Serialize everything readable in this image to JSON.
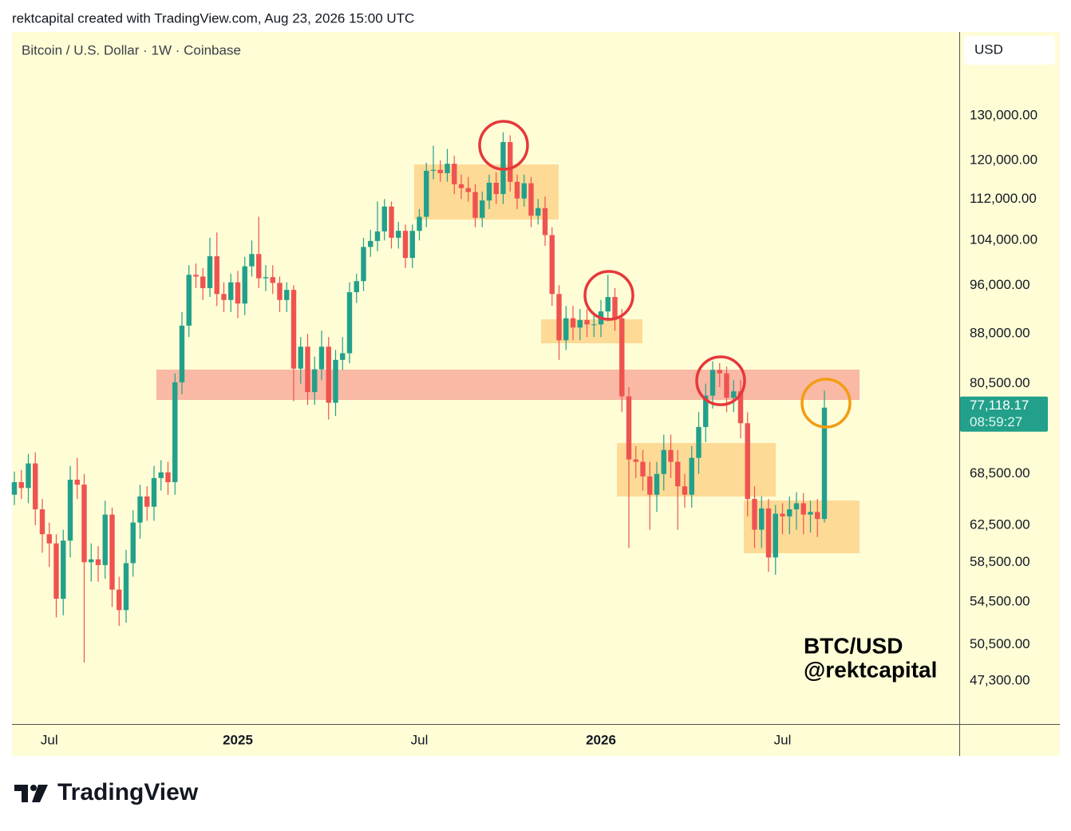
{
  "chart_data": {
    "type": "candlestick",
    "header": "rektcapital created with TradingView.com, Aug 23, 2026 15:00 UTC",
    "title": "Bitcoin / U.S. Dollar · 1W · Coinbase",
    "currency": "USD",
    "annotation": [
      "BTC/USD",
      "@rektcapital"
    ],
    "brand": "TradingView",
    "last_price_label": "77,118.17",
    "countdown": "08:59:27",
    "log_scale": true,
    "grid": false,
    "up_color": "#22a08b",
    "down_color": "#ef5350",
    "categories": [
      null,
      null,
      null,
      null,
      null,
      "Jul",
      null,
      null,
      null,
      null,
      null,
      null,
      null,
      null,
      null,
      null,
      null,
      null,
      null,
      null,
      null,
      null,
      null,
      null,
      null,
      null,
      null,
      null,
      null,
      null,
      null,
      null,
      "2025",
      null,
      null,
      null,
      null,
      null,
      null,
      null,
      null,
      null,
      null,
      null,
      null,
      null,
      null,
      null,
      null,
      null,
      null,
      null,
      null,
      null,
      null,
      null,
      null,
      null,
      "Jul",
      null,
      null,
      null,
      null,
      null,
      null,
      null,
      null,
      null,
      null,
      null,
      null,
      null,
      null,
      null,
      null,
      null,
      null,
      null,
      null,
      null,
      null,
      null,
      null,
      null,
      "2026",
      null,
      null,
      null,
      null,
      null,
      null,
      null,
      null,
      null,
      null,
      null,
      null,
      null,
      null,
      null,
      null,
      null,
      null,
      null,
      null,
      null,
      null,
      null,
      null,
      null,
      "Jul",
      null,
      null,
      null,
      null,
      null,
      null
    ],
    "open": [
      66000,
      67500,
      66800,
      69800,
      64300,
      61500,
      60500,
      54800,
      60800,
      67800,
      67200,
      58500,
      58800,
      58200,
      63700,
      55700,
      53700,
      58400,
      62800,
      65800,
      64600,
      68000,
      68700,
      67500,
      80700,
      89300,
      97800,
      97500,
      95500,
      101100,
      94500,
      93500,
      96500,
      92900,
      99300,
      101500,
      97200,
      97400,
      96400,
      93500,
      95200,
      82700,
      86000,
      79300,
      82600,
      86000,
      77800,
      84000,
      85000,
      94800,
      96700,
      102800,
      103900,
      105700,
      110500,
      104500,
      105800,
      100800,
      105800,
      108500,
      117800,
      118000,
      117300,
      119300,
      115000,
      114200,
      113400,
      108300,
      111700,
      115300,
      113000,
      124000,
      115500,
      112100,
      115200,
      108700,
      110200,
      105000,
      94500,
      87000,
      90500,
      89000,
      90200,
      89500,
      89500,
      91600,
      94000,
      90500,
      78700,
      70300,
      70000,
      68200,
      66000,
      68500,
      71500,
      70000,
      67000,
      66000,
      70500,
      74500,
      78800,
      82500,
      82000,
      78500,
      79400,
      75000,
      65500,
      62000,
      64400,
      59000,
      63800,
      63500,
      64300,
      65000,
      63700,
      64000,
      63200
    ],
    "high": [
      68800,
      69000,
      71000,
      71200,
      65500,
      62800,
      61500,
      62000,
      69500,
      70500,
      68500,
      60500,
      60200,
      65300,
      64500,
      57000,
      59800,
      64200,
      67200,
      67000,
      69500,
      70200,
      70000,
      82000,
      91500,
      99500,
      99800,
      99000,
      104500,
      105500,
      96500,
      98000,
      98500,
      101000,
      104000,
      108500,
      99500,
      99500,
      97500,
      96500,
      96000,
      87500,
      88000,
      84500,
      88500,
      87500,
      85500,
      87500,
      96500,
      98000,
      104500,
      106000,
      111500,
      112000,
      111500,
      107500,
      107000,
      107000,
      110000,
      119500,
      123200,
      120000,
      122500,
      121000,
      117000,
      116500,
      115000,
      113500,
      117000,
      117500,
      126200,
      125500,
      117000,
      117000,
      116500,
      112000,
      112500,
      106500,
      96000,
      92500,
      92500,
      92000,
      92000,
      91000,
      93500,
      97800,
      95500,
      92000,
      80000,
      72000,
      71500,
      70000,
      70000,
      73500,
      73500,
      71500,
      68500,
      72000,
      76500,
      80500,
      83800,
      83500,
      83000,
      81000,
      81000,
      76500,
      67000,
      65800,
      65500,
      64800,
      65000,
      65800,
      66300,
      66200,
      65300,
      65500,
      79500
    ],
    "low": [
      64800,
      65500,
      65000,
      62500,
      59500,
      58000,
      53000,
      53200,
      59000,
      65500,
      48900,
      56500,
      56500,
      56800,
      54000,
      52200,
      52500,
      57000,
      61000,
      63000,
      63000,
      66500,
      66000,
      66000,
      79000,
      87500,
      95500,
      93500,
      94000,
      92500,
      91500,
      91500,
      90500,
      91000,
      97500,
      95500,
      95000,
      94500,
      91500,
      91500,
      78000,
      80500,
      77500,
      77500,
      81000,
      75500,
      76000,
      82500,
      83500,
      93000,
      95000,
      101000,
      102000,
      104000,
      102500,
      102500,
      99000,
      99000,
      104000,
      106500,
      116000,
      115500,
      115500,
      113000,
      112000,
      111500,
      106500,
      106500,
      110000,
      111000,
      111000,
      113500,
      110000,
      110500,
      106500,
      107000,
      103000,
      92500,
      84000,
      85500,
      87000,
      87000,
      87500,
      87500,
      87500,
      90000,
      88500,
      76500,
      60000,
      68000,
      66500,
      62000,
      64000,
      66500,
      68000,
      62000,
      64500,
      64500,
      68500,
      72500,
      77000,
      80000,
      76500,
      76500,
      73000,
      63500,
      60000,
      60000,
      57500,
      57200,
      61500,
      61500,
      62000,
      61500,
      61700,
      61200,
      62800
    ],
    "close": [
      67500,
      66800,
      69800,
      64300,
      61500,
      60500,
      54800,
      60800,
      67800,
      67200,
      58500,
      58800,
      58200,
      63700,
      55700,
      53700,
      58400,
      62800,
      65800,
      64600,
      68000,
      68700,
      67500,
      80700,
      89300,
      97800,
      97500,
      95500,
      101100,
      94500,
      93500,
      96500,
      92900,
      99300,
      101500,
      97200,
      97400,
      96400,
      93500,
      95200,
      82700,
      86000,
      79300,
      82600,
      86000,
      77800,
      84000,
      85000,
      94800,
      96700,
      102800,
      103900,
      105700,
      110500,
      104500,
      105800,
      100800,
      105800,
      108500,
      117800,
      118000,
      117300,
      119300,
      115000,
      114200,
      113400,
      108300,
      111700,
      115300,
      113000,
      124000,
      115500,
      112100,
      115200,
      108700,
      110200,
      105000,
      94500,
      87000,
      90500,
      89000,
      90200,
      89500,
      89500,
      91600,
      94000,
      90500,
      78700,
      70300,
      70000,
      68200,
      66000,
      68500,
      71500,
      70000,
      67000,
      66000,
      70500,
      74500,
      78800,
      82500,
      82000,
      78500,
      79400,
      75000,
      65500,
      62000,
      64400,
      59000,
      63800,
      63500,
      64300,
      65000,
      63700,
      64000,
      63200,
      77118.17
    ],
    "ylim": [
      43800,
      151000
    ],
    "yticks": [
      {
        "value": 130000,
        "label": "130,000.00"
      },
      {
        "value": 120000,
        "label": "120,000.00"
      },
      {
        "value": 112000,
        "label": "112,000.00"
      },
      {
        "value": 104000,
        "label": "104,000.00"
      },
      {
        "value": 96000,
        "label": "96,000.00"
      },
      {
        "value": 88000,
        "label": "88,000.00"
      },
      {
        "value": 80500,
        "label": "80,500.00"
      },
      {
        "value": 68500,
        "label": "68,500.00"
      },
      {
        "value": 62500,
        "label": "62,500.00"
      },
      {
        "value": 58500,
        "label": "58,500.00"
      },
      {
        "value": 54500,
        "label": "54,500.00"
      },
      {
        "value": 50500,
        "label": "50,500.00"
      },
      {
        "value": 47300,
        "label": "47,300.00"
      }
    ]
  }
}
